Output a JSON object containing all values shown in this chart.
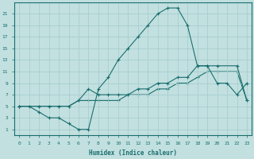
{
  "xlabel": "Humidex (Indice chaleur)",
  "bg_color": "#c2e0e0",
  "line_color": "#1a6e6e",
  "grid_color": "#a8cece",
  "xlim": [
    -0.5,
    23.5
  ],
  "ylim": [
    0,
    23
  ],
  "yticks": [
    1,
    3,
    5,
    7,
    9,
    11,
    13,
    15,
    17,
    19,
    21
  ],
  "xticks": [
    0,
    1,
    2,
    3,
    4,
    5,
    6,
    7,
    8,
    9,
    10,
    11,
    12,
    13,
    14,
    15,
    16,
    17,
    18,
    19,
    20,
    21,
    22,
    23
  ],
  "curve1_x": [
    0,
    1,
    2,
    3,
    4,
    5,
    6,
    7,
    8,
    9,
    10,
    11,
    12,
    13,
    14,
    15,
    16,
    17,
    18,
    19,
    20,
    21,
    22,
    23
  ],
  "curve1_y": [
    5,
    5,
    4,
    3,
    3,
    2,
    1,
    1,
    8,
    10,
    13,
    15,
    17,
    19,
    21,
    22,
    22,
    19,
    12,
    12,
    9,
    9,
    7,
    9
  ],
  "curve2_x": [
    0,
    2,
    3,
    4,
    5,
    6,
    7,
    8,
    9,
    10,
    11,
    12,
    13,
    14,
    15,
    16,
    17,
    18,
    19,
    20,
    22,
    23
  ],
  "curve2_y": [
    5,
    5,
    5,
    5,
    5,
    6,
    8,
    7,
    7,
    7,
    7,
    8,
    8,
    9,
    9,
    10,
    10,
    12,
    12,
    12,
    12,
    6
  ],
  "curve3_x": [
    0,
    2,
    3,
    4,
    5,
    6,
    7,
    8,
    9,
    10,
    11,
    12,
    13,
    14,
    15,
    16,
    17,
    18,
    19,
    20,
    22,
    23
  ],
  "curve3_y": [
    5,
    5,
    5,
    5,
    5,
    6,
    6,
    6,
    6,
    6,
    7,
    7,
    7,
    8,
    8,
    9,
    9,
    10,
    11,
    11,
    11,
    6
  ]
}
